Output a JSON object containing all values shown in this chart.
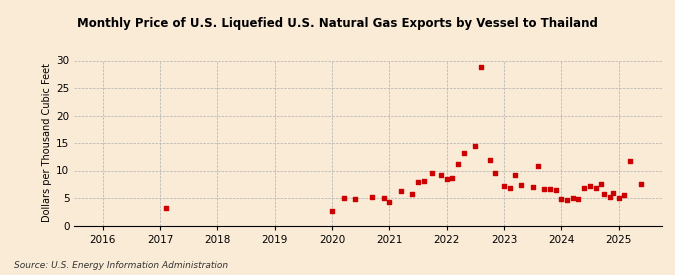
{
  "title": "Monthly Price of U.S. Liquefied U.S. Natural Gas Exports by Vessel to Thailand",
  "ylabel": "Dollars per Thousand Cubic Feet",
  "source": "Source: U.S. Energy Information Administration",
  "background_color": "#faebd7",
  "point_color": "#cc0000",
  "xlim": [
    2015.5,
    2025.75
  ],
  "ylim": [
    0,
    30
  ],
  "yticks": [
    0,
    5,
    10,
    15,
    20,
    25,
    30
  ],
  "xticks": [
    2016,
    2017,
    2018,
    2019,
    2020,
    2021,
    2022,
    2023,
    2024,
    2025
  ],
  "data_points": [
    [
      2017.1,
      3.2
    ],
    [
      2020.0,
      2.6
    ],
    [
      2020.2,
      5.0
    ],
    [
      2020.4,
      4.9
    ],
    [
      2020.7,
      5.1
    ],
    [
      2020.9,
      5.0
    ],
    [
      2021.0,
      4.3
    ],
    [
      2021.2,
      6.2
    ],
    [
      2021.4,
      5.8
    ],
    [
      2021.5,
      8.0
    ],
    [
      2021.6,
      8.1
    ],
    [
      2021.75,
      9.5
    ],
    [
      2021.9,
      9.2
    ],
    [
      2022.0,
      8.5
    ],
    [
      2022.1,
      8.6
    ],
    [
      2022.2,
      11.2
    ],
    [
      2022.3,
      13.1
    ],
    [
      2022.5,
      14.5
    ],
    [
      2022.6,
      28.8
    ],
    [
      2022.75,
      12.0
    ],
    [
      2022.85,
      9.5
    ],
    [
      2023.0,
      7.2
    ],
    [
      2023.1,
      6.8
    ],
    [
      2023.2,
      9.1
    ],
    [
      2023.3,
      7.3
    ],
    [
      2023.5,
      7.0
    ],
    [
      2023.6,
      10.9
    ],
    [
      2023.7,
      6.6
    ],
    [
      2023.8,
      6.7
    ],
    [
      2023.9,
      6.5
    ],
    [
      2024.0,
      4.8
    ],
    [
      2024.1,
      4.7
    ],
    [
      2024.2,
      5.0
    ],
    [
      2024.3,
      4.9
    ],
    [
      2024.4,
      6.9
    ],
    [
      2024.5,
      7.2
    ],
    [
      2024.6,
      6.8
    ],
    [
      2024.7,
      7.5
    ],
    [
      2024.75,
      5.8
    ],
    [
      2024.85,
      5.1
    ],
    [
      2024.9,
      5.9
    ],
    [
      2025.0,
      5.0
    ],
    [
      2025.1,
      5.5
    ],
    [
      2025.2,
      11.7
    ],
    [
      2025.4,
      7.5
    ]
  ]
}
